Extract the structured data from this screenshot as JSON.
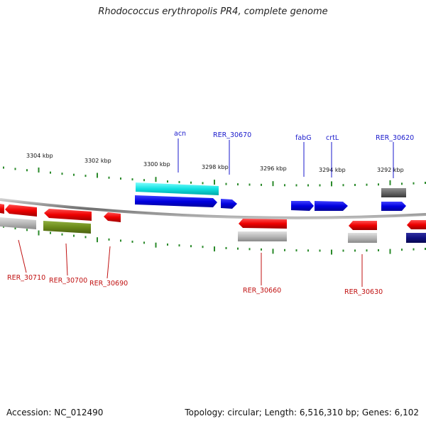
{
  "title": "Rhodococcus erythropolis PR4, complete genome",
  "footer": {
    "accession": "Accession: NC_012490",
    "topology": "Topology: circular; Length: 6,516,310 bp; Genes: 6,102"
  },
  "scale_labels": [
    "3304 kbp",
    "3302 kbp",
    "3300 kbp",
    "3298 kbp",
    "3296 kbp",
    "3294 kbp",
    "3292 kbp"
  ],
  "top_gene_labels": [
    "acn",
    "RER_30670",
    "fabG",
    "crtL",
    "RER_30620"
  ],
  "bottom_gene_labels": [
    "RER_30710",
    "RER_30700",
    "RER_30690",
    "RER_30660",
    "RER_30630"
  ],
  "colors": {
    "forward_gene": "#1010e0",
    "reverse_gene": "#e01010",
    "rna": "#20e0e0",
    "pseudo": "#b0b0b0",
    "olive": "#6b8a1a",
    "dark_gray": "#666666",
    "navy": "#101080",
    "tick": "#2a8a2a",
    "backbone": "#888888",
    "top_label": "#1a1acc",
    "bottom_label": "#c01010"
  }
}
